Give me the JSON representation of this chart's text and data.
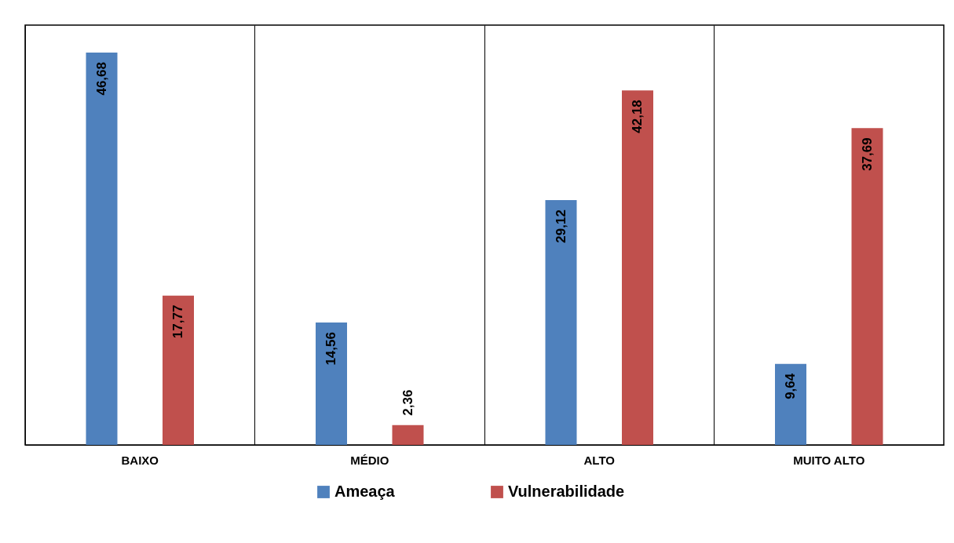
{
  "chart_data": {
    "type": "bar",
    "categories": [
      "BAIXO",
      "MÉDIO",
      "ALTO",
      "MUITO ALTO"
    ],
    "series": [
      {
        "name": "Ameaça",
        "color": "#4f81bd",
        "values": [
          46.68,
          14.56,
          29.12,
          9.64
        ],
        "value_labels": [
          "46,68",
          "14,56",
          "29,12",
          "9,64"
        ]
      },
      {
        "name": "Vulnerabilidade",
        "color": "#c0504d",
        "values": [
          17.77,
          2.36,
          42.18,
          37.69
        ],
        "value_labels": [
          "17,77",
          "2,36",
          "42,18",
          "37,69"
        ]
      }
    ],
    "legend": "bottom",
    "grid": "x",
    "tick_labels": "x"
  }
}
